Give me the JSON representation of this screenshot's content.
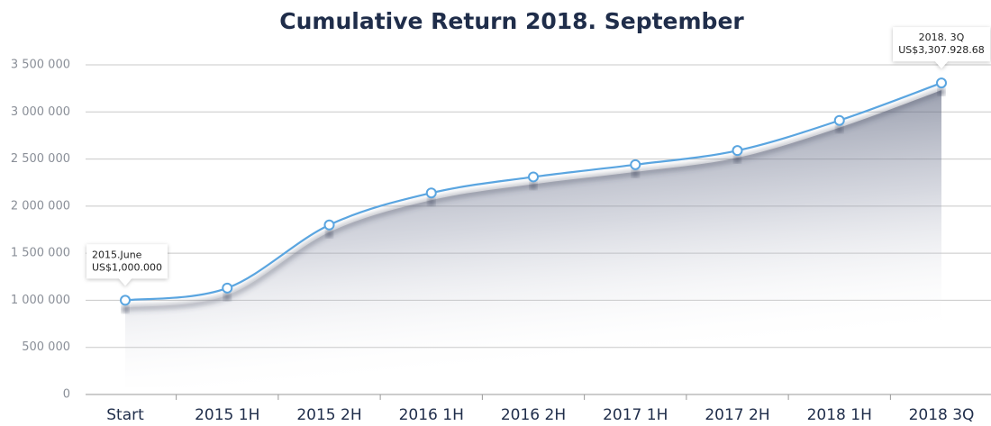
{
  "chart_data": {
    "type": "line",
    "title": "Cumulative Return 2018. September",
    "categories": [
      "Start",
      "2015 1H",
      "2015 2H",
      "2016 1H",
      "2016 2H",
      "2017 1H",
      "2017 2H",
      "2018 1H",
      "2018 3Q"
    ],
    "values": [
      1000000,
      1130000,
      1800000,
      2140000,
      2310000,
      2440000,
      2590000,
      2910000,
      3307928.68
    ],
    "color": "#5aa5e0",
    "ylim": [
      0,
      3500000
    ],
    "yticks": [
      0,
      {
        "value": 500000,
        "label": "500 000"
      },
      {
        "value": 1000000,
        "label": "1 000 000"
      },
      {
        "value": 1500000,
        "label": "1 500 000"
      },
      {
        "value": 2000000,
        "label": "2 000 000"
      },
      {
        "value": 2500000,
        "label": "2 500 000"
      },
      {
        "value": 3000000,
        "label": "3 000 000"
      },
      {
        "value": 3500000,
        "label": "3 500 000"
      }
    ],
    "grid": true,
    "annotations": [
      {
        "title": "2015.June",
        "label": "US$1,000.000"
      },
      {
        "title": "2018. 3Q",
        "label": "US$3,307.928.68"
      }
    ]
  }
}
